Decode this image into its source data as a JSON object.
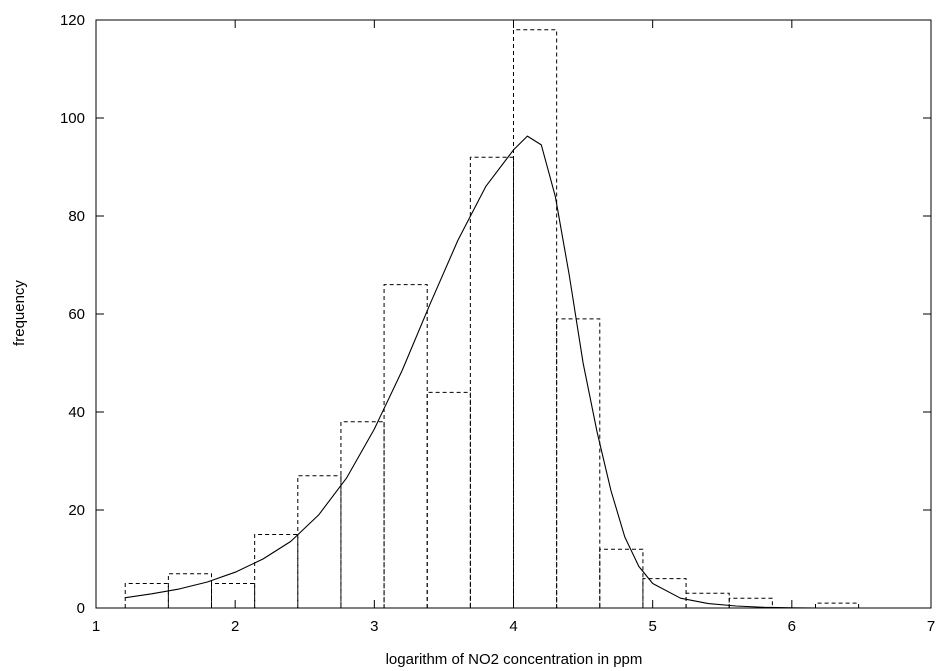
{
  "chart_data": {
    "type": "bar",
    "title": "",
    "xlabel": "logarithm of NO2 concentration in ppm",
    "ylabel": "frequency",
    "xlim": [
      1,
      7
    ],
    "ylim": [
      0,
      120
    ],
    "x_ticks": [
      1,
      2,
      3,
      4,
      5,
      6,
      7
    ],
    "y_ticks": [
      0,
      20,
      40,
      60,
      80,
      100,
      120
    ],
    "grid": false,
    "legend": "none",
    "histogram": {
      "bar_style": "dashed outline",
      "bins": [
        {
          "from": 1.21,
          "to": 1.52,
          "value": 5
        },
        {
          "from": 1.52,
          "to": 1.83,
          "value": 7
        },
        {
          "from": 1.83,
          "to": 2.14,
          "value": 5
        },
        {
          "from": 2.14,
          "to": 2.45,
          "value": 15
        },
        {
          "from": 2.45,
          "to": 2.76,
          "value": 27
        },
        {
          "from": 2.76,
          "to": 3.07,
          "value": 38
        },
        {
          "from": 3.07,
          "to": 3.38,
          "value": 66
        },
        {
          "from": 3.38,
          "to": 3.69,
          "value": 44
        },
        {
          "from": 3.69,
          "to": 4.0,
          "value": 92
        },
        {
          "from": 4.0,
          "to": 4.31,
          "value": 118
        },
        {
          "from": 4.31,
          "to": 4.62,
          "value": 59
        },
        {
          "from": 4.62,
          "to": 4.93,
          "value": 12
        },
        {
          "from": 4.93,
          "to": 5.24,
          "value": 6
        },
        {
          "from": 5.24,
          "to": 5.55,
          "value": 3
        },
        {
          "from": 5.55,
          "to": 5.86,
          "value": 2
        },
        {
          "from": 5.86,
          "to": 6.17,
          "value": 0
        },
        {
          "from": 6.17,
          "to": 6.48,
          "value": 1
        }
      ]
    },
    "fitted_curve": {
      "style": "solid line",
      "points": [
        [
          1.21,
          2.1
        ],
        [
          1.4,
          2.9
        ],
        [
          1.6,
          3.9
        ],
        [
          1.8,
          5.3
        ],
        [
          2.0,
          7.3
        ],
        [
          2.2,
          10.0
        ],
        [
          2.4,
          13.6
        ],
        [
          2.6,
          19.0
        ],
        [
          2.8,
          26.5
        ],
        [
          3.0,
          36.5
        ],
        [
          3.2,
          48.5
        ],
        [
          3.4,
          62.0
        ],
        [
          3.6,
          75.0
        ],
        [
          3.8,
          86.0
        ],
        [
          4.0,
          93.5
        ],
        [
          4.1,
          96.3
        ],
        [
          4.2,
          94.5
        ],
        [
          4.3,
          84.0
        ],
        [
          4.4,
          68.0
        ],
        [
          4.5,
          50.0
        ],
        [
          4.6,
          36.0
        ],
        [
          4.7,
          24.0
        ],
        [
          4.8,
          14.5
        ],
        [
          4.9,
          8.5
        ],
        [
          5.0,
          5.0
        ],
        [
          5.2,
          2.0
        ],
        [
          5.4,
          0.9
        ],
        [
          5.6,
          0.4
        ],
        [
          5.8,
          0.15
        ],
        [
          6.0,
          0.05
        ],
        [
          6.2,
          0.0
        ],
        [
          6.5,
          0.0
        ],
        [
          7.0,
          0.0
        ]
      ]
    }
  }
}
